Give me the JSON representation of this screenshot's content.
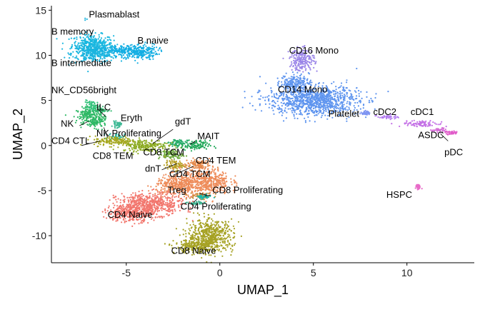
{
  "chart_data": {
    "type": "scatter",
    "xlabel": "UMAP_1",
    "ylabel": "UMAP_2",
    "xlim": [
      -9,
      13.6
    ],
    "ylim": [
      -13,
      15.5
    ],
    "x_ticks": [
      -5,
      0,
      5,
      10
    ],
    "y_ticks": [
      -10,
      -5,
      0,
      5,
      10,
      15
    ],
    "grid": false,
    "legend": "none",
    "clusters": [
      {
        "name": "Plasmablast",
        "color": "#20B6E0",
        "points": [
          [
            -7.2,
            14.1
          ],
          [
            -7.2,
            13.9
          ],
          [
            -7.1,
            14.0
          ]
        ]
      },
      {
        "name": "B memory",
        "color": "#19B8E0",
        "blobs": [
          [
            -6.8,
            11.2,
            1.0,
            1.0
          ]
        ]
      },
      {
        "name": "B intermediate",
        "color": "#1CB5DF",
        "blobs": [
          [
            -6.7,
            10.2,
            1.1,
            0.9
          ]
        ]
      },
      {
        "name": "B naive",
        "color": "#14AEE3",
        "blobs": [
          [
            -4.3,
            10.4,
            0.9,
            0.8
          ],
          [
            -5.3,
            10.5,
            0.8,
            0.5
          ]
        ]
      },
      {
        "name": "NK_CD56bright",
        "color": "#33C27A",
        "blobs": [
          [
            -6.8,
            4.3,
            0.4,
            0.6
          ]
        ]
      },
      {
        "name": "NK",
        "color": "#2EB865",
        "blobs": [
          [
            -7.0,
            3.3,
            0.6,
            0.8
          ],
          [
            -6.6,
            2.6,
            0.5,
            0.6
          ]
        ]
      },
      {
        "name": "ILC",
        "color": "#38BC74",
        "blobs": [
          [
            -6.3,
            3.9,
            0.3,
            0.3
          ]
        ]
      },
      {
        "name": "Eryth",
        "color": "#3DB995",
        "blobs": [
          [
            -5.5,
            2.3,
            0.2,
            0.3
          ]
        ]
      },
      {
        "name": "NK Proliferating",
        "color": "#2FB39E",
        "blobs": [
          [
            -5.5,
            1.0,
            0.4,
            0.3
          ]
        ]
      },
      {
        "name": "gdT",
        "color": "#25AC6B",
        "blobs": [
          [
            -2.3,
            0.3,
            0.5,
            0.4
          ]
        ]
      },
      {
        "name": "MAIT",
        "color": "#23A85A",
        "blobs": [
          [
            -1.3,
            0.0,
            0.7,
            0.5
          ]
        ]
      },
      {
        "name": "CD4 CTL",
        "color": "#A6A821",
        "blobs": [
          [
            -5.6,
            0.5,
            1.0,
            0.5
          ]
        ]
      },
      {
        "name": "CD8 TEM",
        "color": "#8CAB22",
        "blobs": [
          [
            -4.0,
            0.0,
            1.1,
            0.6
          ]
        ]
      },
      {
        "name": "CD8 TCM",
        "color": "#6DA93D",
        "blobs": [
          [
            -2.6,
            -1.0,
            0.6,
            0.5
          ]
        ]
      },
      {
        "name": "dnT",
        "color": "#B79F24",
        "blobs": [
          [
            -2.4,
            -2.2,
            0.5,
            0.5
          ]
        ]
      },
      {
        "name": "CD4 TEM",
        "color": "#E58A4C",
        "blobs": [
          [
            -1.2,
            -2.1,
            0.6,
            0.6
          ]
        ]
      },
      {
        "name": "CD4 TCM",
        "color": "#EE8C5A",
        "blobs": [
          [
            -0.8,
            -4.0,
            1.2,
            1.3
          ],
          [
            -2.3,
            -4.4,
            1.0,
            1.0
          ]
        ]
      },
      {
        "name": "Treg",
        "color": "#C88F3B",
        "blobs": [
          [
            -1.0,
            -5.6,
            0.6,
            0.3
          ]
        ]
      },
      {
        "name": "CD8 Proliferating",
        "color": "#1FB6A8",
        "blobs": [
          [
            -0.9,
            -5.7,
            0.4,
            0.2
          ]
        ]
      },
      {
        "name": "CD4 Proliferating",
        "color": "#3FB08E",
        "blobs": [
          [
            -1.3,
            -6.4,
            0.4,
            0.2
          ]
        ]
      },
      {
        "name": "CD4 Naive",
        "color": "#F2776E",
        "blobs": [
          [
            -3.7,
            -6.5,
            1.6,
            1.1
          ],
          [
            -4.8,
            -7.5,
            1.1,
            0.9
          ]
        ]
      },
      {
        "name": "CD8 Naive",
        "color": "#A6A224",
        "blobs": [
          [
            -0.5,
            -10.0,
            1.1,
            1.6
          ],
          [
            -1.3,
            -11.2,
            1.0,
            0.7
          ]
        ]
      },
      {
        "name": "CD16 Mono",
        "color": "#9B86E8",
        "blobs": [
          [
            4.4,
            9.5,
            0.6,
            1.1
          ]
        ]
      },
      {
        "name": "CD14 Mono",
        "color": "#5F95EF",
        "blobs": [
          [
            5.0,
            5.0,
            2.2,
            1.5
          ],
          [
            4.0,
            7.0,
            0.7,
            0.8
          ]
        ]
      },
      {
        "name": "Platelet",
        "color": "#7F95F2",
        "blobs": [
          [
            7.8,
            3.6,
            0.2,
            0.2
          ]
        ]
      },
      {
        "name": "cDC2",
        "color": "#B37BF0",
        "blobs": [
          [
            9.0,
            3.2,
            0.5,
            0.25
          ]
        ]
      },
      {
        "name": "cDC1",
        "color": "#C471E6",
        "blobs": [
          [
            10.8,
            2.4,
            1.0,
            0.3
          ]
        ]
      },
      {
        "name": "ASDC",
        "color": "#D46DD6",
        "blobs": [
          [
            11.7,
            1.7,
            0.4,
            0.2
          ]
        ]
      },
      {
        "name": "pDC",
        "color": "#E05CC9",
        "blobs": [
          [
            12.4,
            1.4,
            0.3,
            0.2
          ]
        ]
      },
      {
        "name": "HSPC",
        "color": "#E86BC8",
        "blobs": [
          [
            10.6,
            -4.6,
            0.12,
            0.25
          ]
        ]
      }
    ],
    "labels": [
      {
        "text": "Plasmablast",
        "x": -7.0,
        "y": 14.2,
        "anchor": "start"
      },
      {
        "text": "B memory",
        "x": -9.0,
        "y": 12.3,
        "anchor": "start"
      },
      {
        "text": "B naive",
        "x": -4.4,
        "y": 11.3,
        "anchor": "start"
      },
      {
        "text": "B intermediate",
        "x": -9.0,
        "y": 8.8,
        "anchor": "start"
      },
      {
        "text": "NK_CD56bright",
        "x": -9.0,
        "y": 5.8,
        "anchor": "start"
      },
      {
        "text": "ILC",
        "x": -6.6,
        "y": 3.9,
        "anchor": "start"
      },
      {
        "text": "Eryth",
        "x": -5.3,
        "y": 2.7,
        "anchor": "start"
      },
      {
        "text": "NK",
        "x": -8.5,
        "y": 2.1,
        "anchor": "start"
      },
      {
        "text": "gdT",
        "x": -2.4,
        "y": 2.3,
        "anchor": "start"
      },
      {
        "text": "NK Proliferating",
        "x": -6.6,
        "y": 1.0,
        "anchor": "start"
      },
      {
        "text": "MAIT",
        "x": -1.2,
        "y": 0.7,
        "anchor": "start"
      },
      {
        "text": "CD4 CTL",
        "x": -9.0,
        "y": 0.2,
        "anchor": "start"
      },
      {
        "text": "CD8 TEM",
        "x": -6.8,
        "y": -1.5,
        "anchor": "start"
      },
      {
        "text": "CD8 TCM",
        "x": -4.1,
        "y": -1.1,
        "anchor": "start"
      },
      {
        "text": "CD4 TEM",
        "x": -1.3,
        "y": -2.0,
        "anchor": "start"
      },
      {
        "text": "dnT",
        "x": -4.0,
        "y": -2.9,
        "anchor": "start"
      },
      {
        "text": "CD4 TCM",
        "x": -2.7,
        "y": -3.5,
        "anchor": "start"
      },
      {
        "text": "Treg",
        "x": -2.8,
        "y": -5.3,
        "anchor": "start"
      },
      {
        "text": "CD8 Proliferating",
        "x": -0.4,
        "y": -5.3,
        "anchor": "start"
      },
      {
        "text": "CD4 Proliferating",
        "x": -2.1,
        "y": -7.1,
        "anchor": "start"
      },
      {
        "text": "CD4 Naive",
        "x": -6.0,
        "y": -8.0,
        "anchor": "start"
      },
      {
        "text": "CD8 Naive",
        "x": -2.6,
        "y": -12.0,
        "anchor": "start"
      },
      {
        "text": "CD16 Mono",
        "x": 3.7,
        "y": 10.2,
        "anchor": "start"
      },
      {
        "text": "CD14 Mono",
        "x": 3.1,
        "y": 5.9,
        "anchor": "start"
      },
      {
        "text": "Platelet",
        "x": 5.8,
        "y": 3.2,
        "anchor": "start"
      },
      {
        "text": "cDC2",
        "x": 8.2,
        "y": 3.4,
        "anchor": "start"
      },
      {
        "text": "cDC1",
        "x": 10.2,
        "y": 3.4,
        "anchor": "start"
      },
      {
        "text": "ASDC",
        "x": 10.6,
        "y": 0.8,
        "anchor": "start"
      },
      {
        "text": "pDC",
        "x": 12.0,
        "y": -1.1,
        "anchor": "start"
      },
      {
        "text": "HSPC",
        "x": 8.9,
        "y": -5.8,
        "anchor": "start"
      }
    ],
    "leader_lines": [
      [
        -6.5,
        4.0,
        -6.1,
        3.2
      ],
      [
        -7.5,
        2.2,
        -7.0,
        2.7
      ],
      [
        -6.0,
        0.9,
        -6.2,
        2.0
      ],
      [
        -2.5,
        1.8,
        -3.6,
        0.2
      ],
      [
        -1.3,
        0.5,
        -1.6,
        0.1
      ],
      [
        -7.4,
        0.0,
        -6.4,
        0.5
      ],
      [
        -2.2,
        -1.1,
        -2.5,
        -0.8
      ],
      [
        -3.1,
        -2.7,
        -2.3,
        -2.0
      ],
      [
        -1.4,
        -2.3,
        -2.5,
        -3.3
      ],
      [
        -1.1,
        -5.3,
        -0.7,
        -5.5
      ],
      [
        -0.5,
        -5.5,
        -0.8,
        -5.6
      ],
      [
        -1.4,
        -6.3,
        -1.2,
        -5.9
      ],
      [
        12.2,
        0.5,
        11.8,
        1.3
      ]
    ]
  }
}
